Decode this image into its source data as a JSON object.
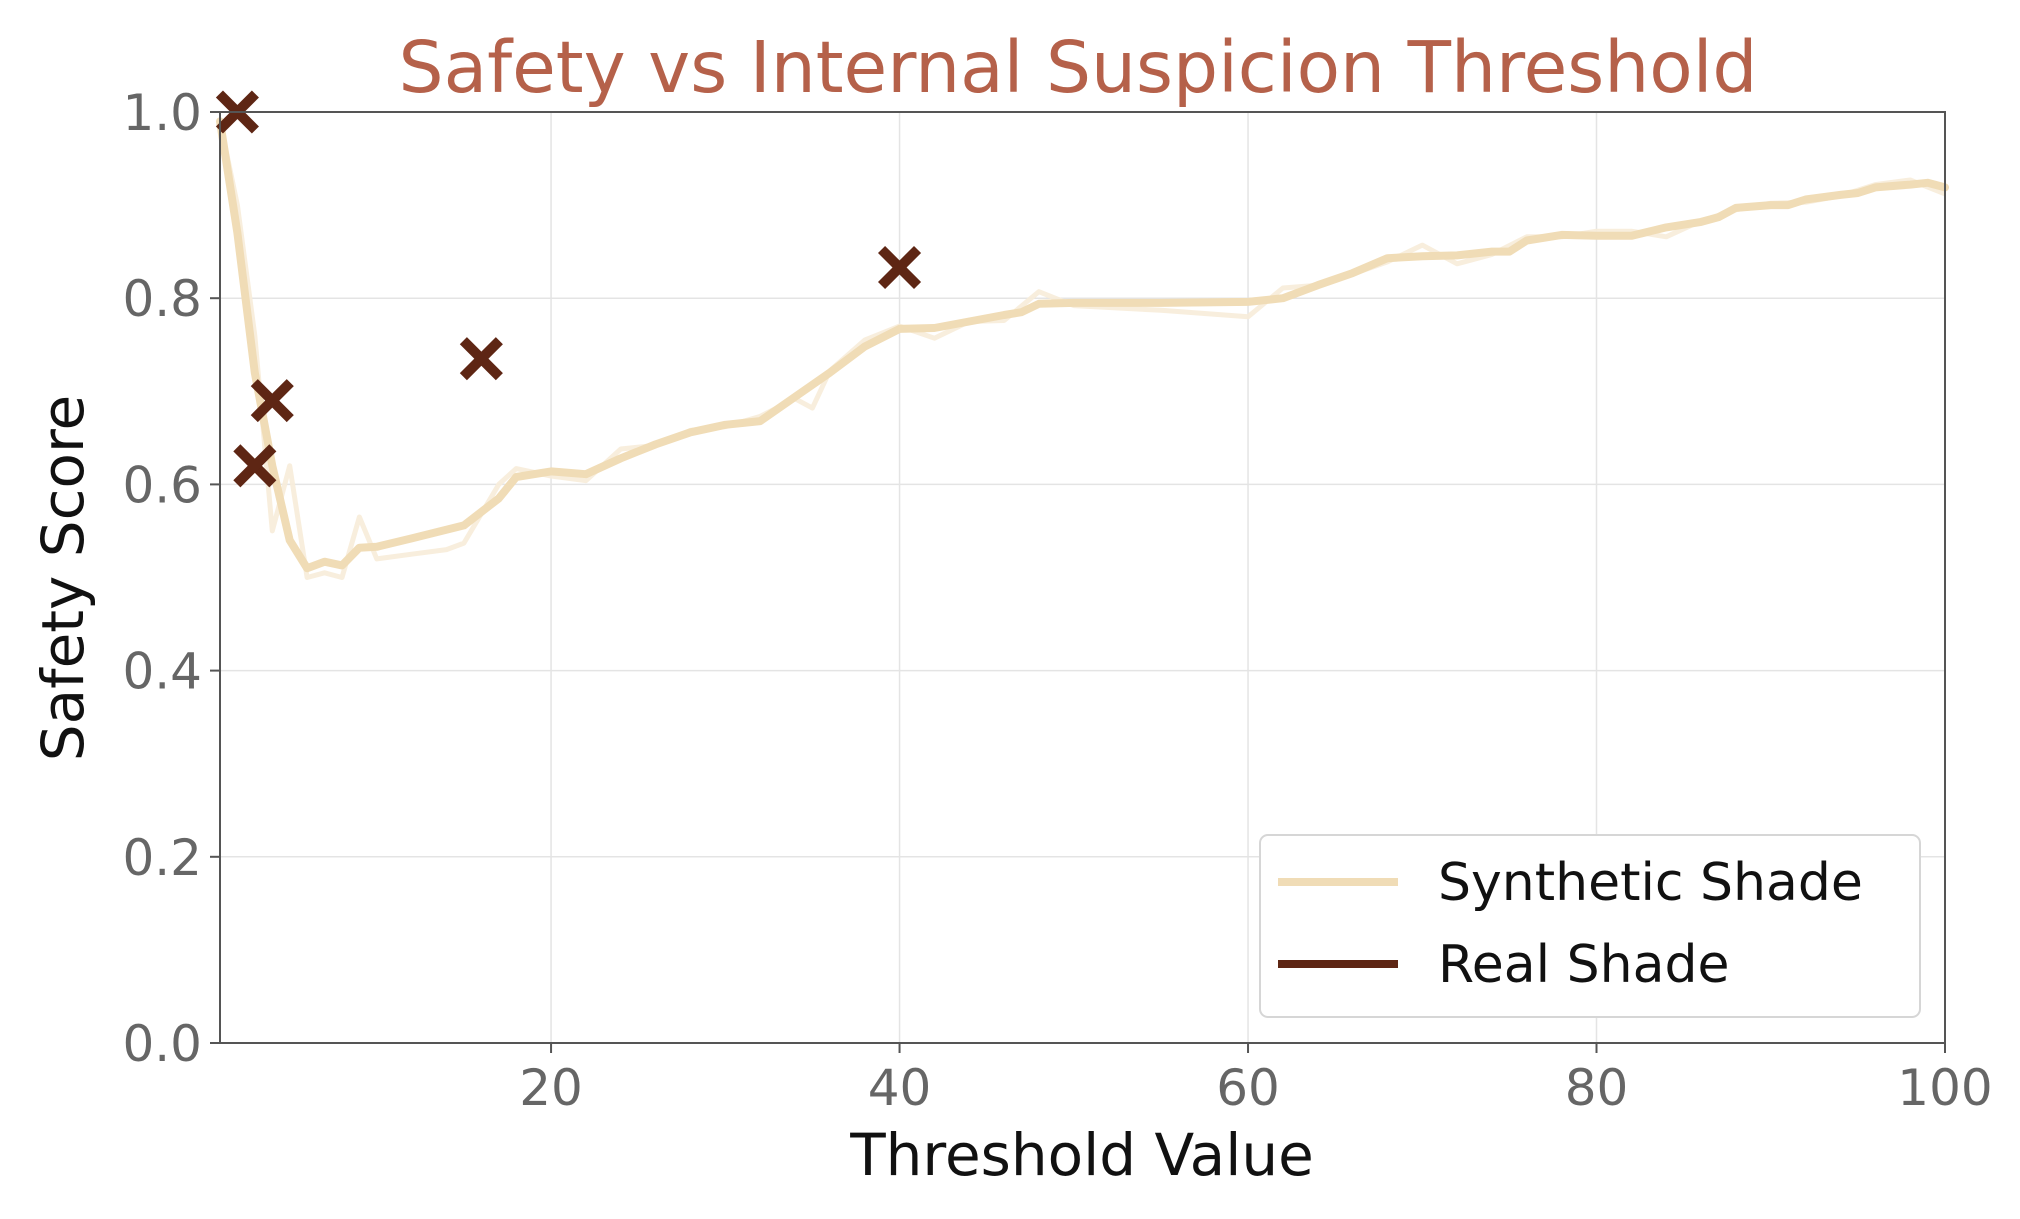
{
  "chart_data": {
    "type": "line",
    "title": "Safety vs Internal Suspicion Threshold",
    "xlabel": "Threshold Value",
    "ylabel": "Safety Score",
    "xlim": [
      1,
      100
    ],
    "ylim": [
      0,
      1
    ],
    "x_ticks": [
      20,
      40,
      60,
      80,
      100
    ],
    "y_ticks": [
      0.0,
      0.2,
      0.4,
      0.6,
      0.8,
      1.0
    ],
    "grid": true,
    "legend_position": "lower-right",
    "colors": {
      "title": "#b5614a",
      "synthetic": "#f0dcb6",
      "synthetic_faint": "#f7ecd9",
      "real": "#5e2614",
      "axis": "#555555",
      "grid": "#e4e4e4"
    },
    "series": [
      {
        "name": "Synthetic Shade",
        "style": "line",
        "x": [
          1,
          2,
          3,
          4,
          5,
          6,
          7,
          8,
          9,
          10,
          12,
          15,
          17,
          18,
          20,
          22,
          24,
          26,
          28,
          30,
          32,
          34,
          36,
          38,
          40,
          42,
          44,
          46,
          47,
          48,
          50,
          55,
          60,
          62,
          64,
          66,
          68,
          70,
          72,
          74,
          75,
          76,
          78,
          80,
          82,
          84,
          86,
          87,
          88,
          90,
          91,
          92,
          94,
          95,
          96,
          98,
          99,
          100
        ],
        "y": [
          0.99,
          0.87,
          0.72,
          0.62,
          0.54,
          0.51,
          0.517,
          0.513,
          0.532,
          0.533,
          0.542,
          0.556,
          0.585,
          0.608,
          0.614,
          0.611,
          0.628,
          0.643,
          0.656,
          0.664,
          0.668,
          0.694,
          0.72,
          0.748,
          0.767,
          0.768,
          0.775,
          0.782,
          0.785,
          0.794,
          0.795,
          0.795,
          0.796,
          0.8,
          0.814,
          0.827,
          0.843,
          0.845,
          0.846,
          0.85,
          0.85,
          0.862,
          0.868,
          0.867,
          0.867,
          0.876,
          0.882,
          0.887,
          0.897,
          0.9,
          0.9,
          0.906,
          0.911,
          0.913,
          0.919,
          0.922,
          0.924,
          0.919
        ]
      },
      {
        "name": "",
        "style": "faint-line",
        "x": [
          1,
          2,
          3,
          4,
          5,
          6,
          7,
          8,
          9,
          10,
          12,
          14,
          15,
          17,
          18,
          20,
          22,
          24,
          26,
          28,
          30,
          32,
          34,
          35,
          36,
          38,
          40,
          42,
          44,
          46,
          48,
          50,
          55,
          60,
          62,
          64,
          66,
          68,
          70,
          72,
          74,
          76,
          78,
          80,
          82,
          84,
          86,
          88,
          90,
          92,
          94,
          96,
          98,
          100
        ],
        "y": [
          0.99,
          0.9,
          0.76,
          0.55,
          0.62,
          0.5,
          0.505,
          0.5,
          0.565,
          0.52,
          0.525,
          0.53,
          0.537,
          0.6,
          0.617,
          0.609,
          0.604,
          0.638,
          0.642,
          0.658,
          0.662,
          0.673,
          0.692,
          0.682,
          0.722,
          0.755,
          0.77,
          0.757,
          0.775,
          0.776,
          0.807,
          0.792,
          0.787,
          0.78,
          0.811,
          0.814,
          0.826,
          0.839,
          0.857,
          0.837,
          0.847,
          0.866,
          0.866,
          0.872,
          0.872,
          0.866,
          0.883,
          0.895,
          0.902,
          0.903,
          0.91,
          0.922,
          0.927,
          0.912
        ]
      },
      {
        "name": "Real Shade",
        "style": "markers-x",
        "x": [
          2,
          3,
          4,
          16,
          40
        ],
        "y": [
          1.0,
          0.62,
          0.69,
          0.735,
          0.833
        ]
      }
    ]
  }
}
